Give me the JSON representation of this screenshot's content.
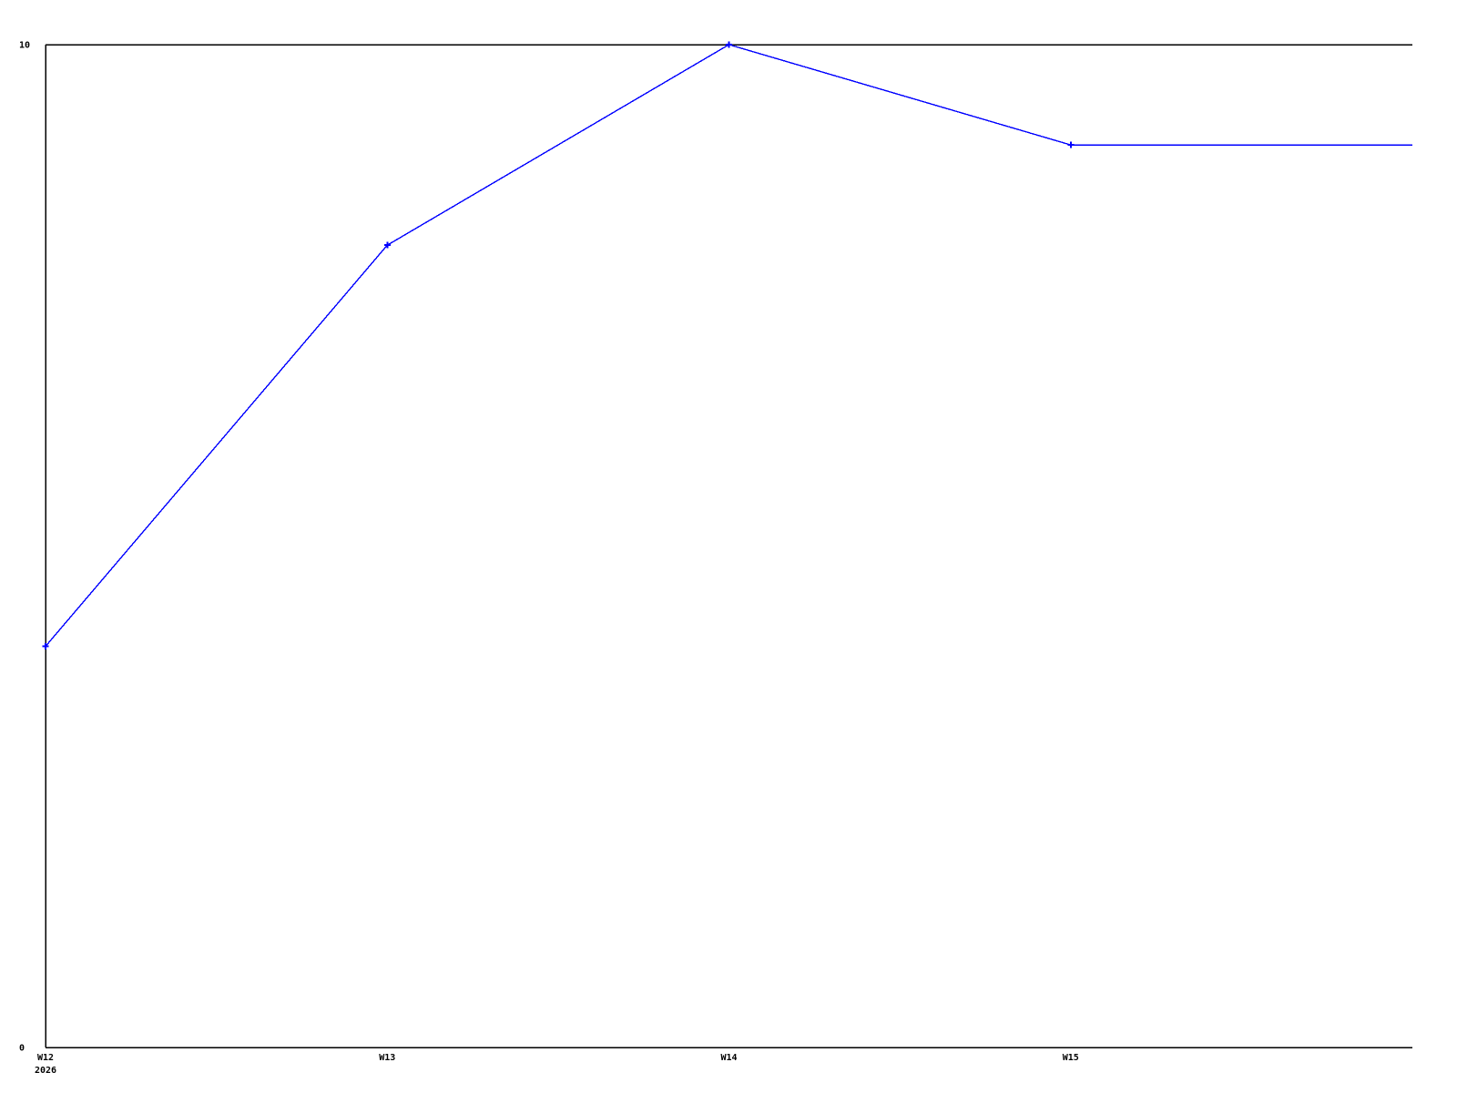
{
  "page": {
    "background_color": "#ffffff"
  },
  "chart_data": {
    "type": "line",
    "title": "",
    "xlabel": "",
    "ylabel": "",
    "categories": [
      "W12",
      "W13",
      "W14",
      "W15"
    ],
    "values": [
      4,
      8,
      10,
      9
    ],
    "trailing_edge_value": 9,
    "x_axis_year_label": "2026",
    "ylim": [
      0,
      10
    ],
    "yticks": [
      {
        "value": 0,
        "label": "0"
      },
      {
        "value": 10,
        "label": "10"
      }
    ],
    "grid": false,
    "legend_position": "none",
    "line_color": "#0000ff",
    "marker": "plus",
    "marker_color": "#0000ff",
    "axis_color": "#000000",
    "tick_label_color": "#000000",
    "borders": [
      "top",
      "left",
      "bottom"
    ]
  }
}
